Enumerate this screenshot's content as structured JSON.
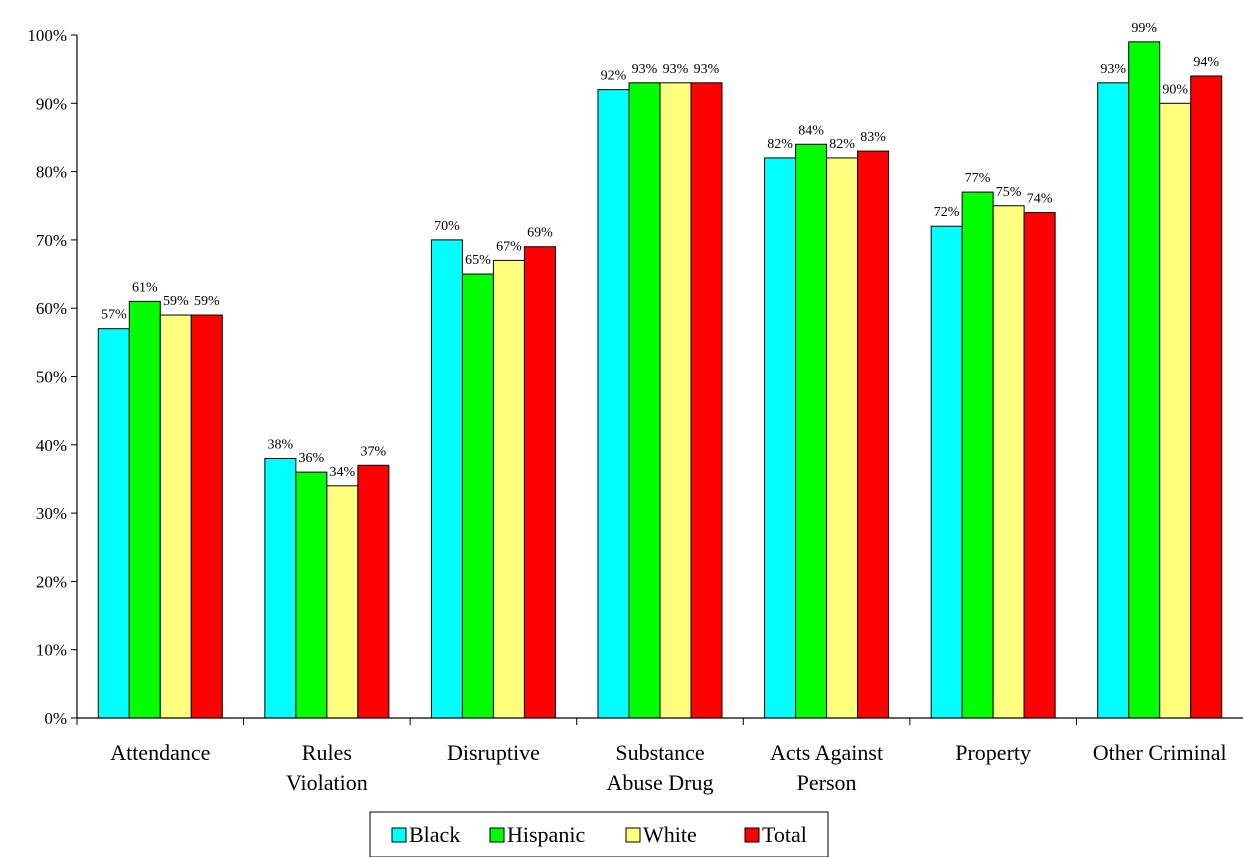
{
  "chart_data": {
    "type": "bar",
    "title": "",
    "xlabel": "",
    "ylabel": "",
    "ylim": [
      0,
      100
    ],
    "y_tick_step": 10,
    "y_tick_suffix": "%",
    "grid": false,
    "legend_position": "bottom",
    "categories": [
      [
        "Attendance"
      ],
      [
        "Rules",
        "Violation"
      ],
      [
        "Disruptive"
      ],
      [
        "Substance",
        "Abuse Drug"
      ],
      [
        "Acts Against",
        "Person"
      ],
      [
        "Property"
      ],
      [
        "Other Criminal"
      ]
    ],
    "series": [
      {
        "name": "Black",
        "color": "#00FFFF",
        "values": [
          57,
          38,
          70,
          92,
          82,
          72,
          93
        ],
        "labels": [
          "57%",
          "38%",
          "70%",
          "92%",
          "82%",
          "72%",
          "93%"
        ]
      },
      {
        "name": "Hispanic",
        "color": "#00FF00",
        "values": [
          61,
          36,
          65,
          93,
          84,
          77,
          99
        ],
        "labels": [
          "61%",
          "36%",
          "65%",
          "93%",
          "84%",
          "77%",
          "99%"
        ]
      },
      {
        "name": "White",
        "color": "#FFFF80",
        "values": [
          59,
          34,
          67,
          93,
          82,
          75,
          90
        ],
        "labels": [
          "59%",
          "34%",
          "67%",
          "93%",
          "82%",
          "75%",
          "90%"
        ]
      },
      {
        "name": "Total",
        "color": "#FF0000",
        "values": [
          59,
          37,
          69,
          93,
          83,
          74,
          94
        ],
        "labels": [
          "59%",
          "37%",
          "69%",
          "93%",
          "83%",
          "74%",
          "94%"
        ]
      }
    ]
  }
}
